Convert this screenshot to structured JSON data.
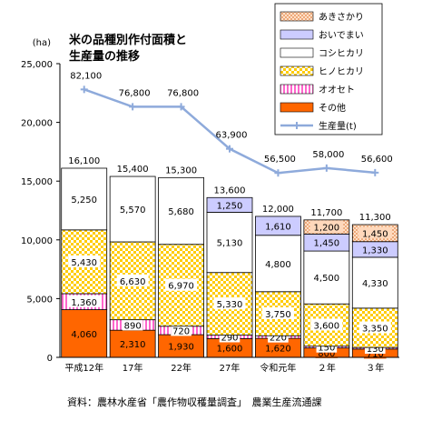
{
  "chart_data": {
    "type": "bar",
    "stacked": true,
    "title_lines": [
      "米の品種別作付面積と",
      "生産量の推移"
    ],
    "ylabel": "(ha)",
    "ylim": [
      0,
      25000
    ],
    "yticks": [
      0,
      5000,
      10000,
      15000,
      20000,
      25000
    ],
    "ytick_labels": [
      "0",
      "5,000",
      "10,000",
      "15,000",
      "20,000",
      "25,000"
    ],
    "categories": [
      "平成12年",
      "17年",
      "22年",
      "27年",
      "令和元年",
      "２年",
      "３年"
    ],
    "series": [
      {
        "name": "その他",
        "color": "#ff6600",
        "pattern": "solid",
        "values": [
          4060,
          2310,
          1930,
          1600,
          1620,
          800,
          710
        ],
        "labels": [
          "4,060",
          "2,310",
          "1,930",
          "1,600",
          "1,620",
          "800",
          "710"
        ]
      },
      {
        "name": "オオセト",
        "color": "#ff66cc",
        "pattern": "vstripe",
        "values": [
          1360,
          890,
          720,
          290,
          220,
          150,
          130
        ],
        "labels": [
          "1,360",
          "890",
          "720",
          "290",
          "220",
          "150",
          "130"
        ]
      },
      {
        "name": "ヒノヒカリ",
        "color": "#ffcc00",
        "pattern": "grid",
        "values": [
          5430,
          6630,
          6970,
          5330,
          3750,
          3600,
          3350
        ],
        "labels": [
          "5,430",
          "6,630",
          "6,970",
          "5,330",
          "3,750",
          "3,600",
          "3,350"
        ]
      },
      {
        "name": "コシヒカリ",
        "color": "#ffffff",
        "pattern": "solid",
        "values": [
          5250,
          5570,
          5680,
          5130,
          4800,
          4500,
          4330
        ],
        "labels": [
          "5,250",
          "5,570",
          "5,680",
          "5,130",
          "4,800",
          "4,500",
          "4,330"
        ]
      },
      {
        "name": "おいでまい",
        "color": "#ccccff",
        "pattern": "solid",
        "values": [
          0,
          0,
          0,
          1250,
          1610,
          1450,
          1330
        ],
        "labels": [
          "",
          "",
          "",
          "1,250",
          "1,610",
          "1,450",
          "1,330"
        ]
      },
      {
        "name": "あきさかり",
        "color": "#ffccaa",
        "pattern": "dots",
        "values": [
          0,
          0,
          0,
          0,
          0,
          1200,
          1450
        ],
        "labels": [
          "",
          "",
          "",
          "",
          "",
          "1,200",
          "1,450"
        ]
      }
    ],
    "totals": [
      16100,
      15400,
      15300,
      13600,
      12000,
      11700,
      11300
    ],
    "total_labels": [
      "16,100",
      "15,400",
      "15,300",
      "13,600",
      "12,000",
      "11,700",
      "11,300"
    ],
    "line": {
      "name": "生産量(t)",
      "color": "#8eaadb",
      "values": [
        82100,
        76800,
        76800,
        63900,
        56500,
        58000,
        56600
      ],
      "labels": [
        "82,100",
        "76,800",
        "76,800",
        "63,900",
        "56,500",
        "58,000",
        "56,600"
      ],
      "scale_note": "plotted on the left axis scale, 1 ha tick = 3.6 t"
    },
    "legend_order": [
      "あきさかり",
      "おいでまい",
      "コシヒカリ",
      "ヒノヒカリ",
      "オオセト",
      "その他",
      "生産量(t)"
    ],
    "legend_placement": "top-right",
    "source": "資料：農林水産省「農作物収穫量調査」　農業生産流通課"
  }
}
